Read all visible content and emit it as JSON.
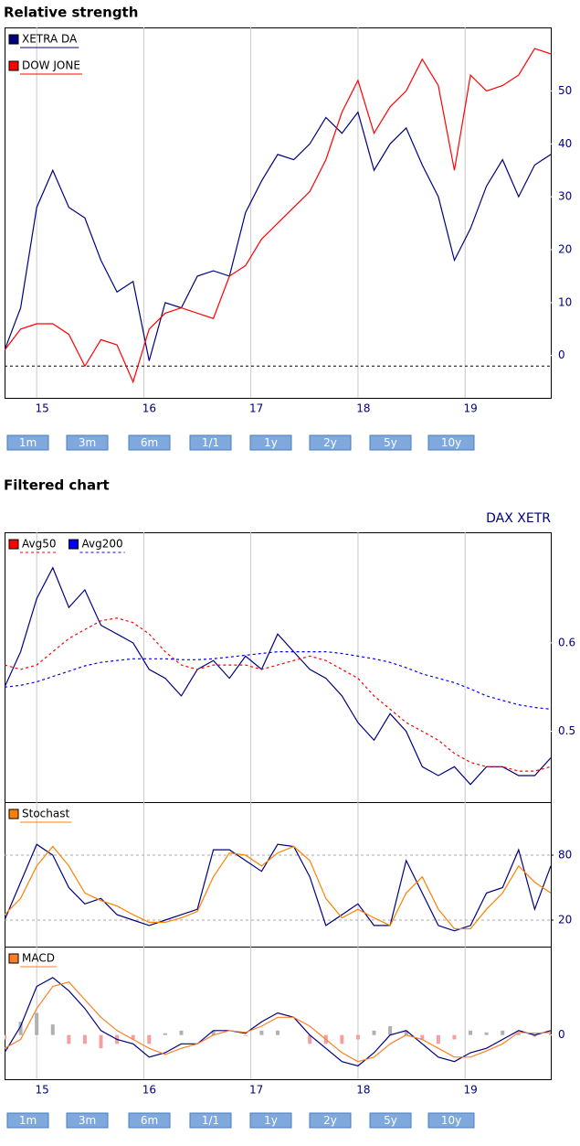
{
  "range_buttons": [
    "1m",
    "3m",
    "6m",
    "1/1",
    "1y",
    "2y",
    "5y",
    "10y"
  ],
  "chart_data": [
    {
      "type": "line",
      "title": "Relative strength",
      "x": [
        14.7,
        14.85,
        15.0,
        15.15,
        15.3,
        15.45,
        15.6,
        15.75,
        15.9,
        16.05,
        16.2,
        16.35,
        16.5,
        16.65,
        16.8,
        16.95,
        17.1,
        17.25,
        17.4,
        17.55,
        17.7,
        17.85,
        18.0,
        18.15,
        18.3,
        18.45,
        18.6,
        18.75,
        18.9,
        19.05,
        19.2,
        19.35,
        19.5,
        19.65,
        19.8
      ],
      "series": [
        {
          "name": "XETRA DA",
          "color": "#00007f",
          "values": [
            1,
            9,
            28,
            35,
            28,
            26,
            18,
            12,
            14,
            -1,
            10,
            9,
            15,
            16,
            15,
            27,
            33,
            38,
            37,
            40,
            45,
            42,
            46,
            35,
            40,
            43,
            36,
            30,
            18,
            24,
            32,
            37,
            30,
            36,
            38
          ]
        },
        {
          "name": "DOW JONE",
          "color": "#ff0000",
          "values": [
            1,
            5,
            6,
            6,
            4,
            -2,
            3,
            2,
            -5,
            5,
            8,
            9,
            8,
            7,
            15,
            17,
            22,
            25,
            28,
            31,
            37,
            46,
            52,
            42,
            47,
            50,
            56,
            51,
            35,
            53,
            50,
            51,
            53,
            58,
            57
          ]
        }
      ],
      "xlim": [
        14.7,
        19.8
      ],
      "xticks": [
        15,
        16,
        17,
        18,
        19
      ],
      "xtick_labels": true,
      "ylim": [
        -8,
        62
      ],
      "yticks": [
        0,
        10,
        20,
        30,
        40,
        50
      ],
      "hline": -2,
      "legend": "top-left",
      "legend_direction": "column"
    },
    {
      "type": "line",
      "title": "Filtered chart",
      "subtitle": "DAX XETR",
      "x": [
        14.7,
        14.85,
        15.0,
        15.15,
        15.3,
        15.45,
        15.6,
        15.75,
        15.9,
        16.05,
        16.2,
        16.35,
        16.5,
        16.65,
        16.8,
        16.95,
        17.1,
        17.25,
        17.4,
        17.55,
        17.7,
        17.85,
        18.0,
        18.15,
        18.3,
        18.45,
        18.6,
        18.75,
        18.9,
        19.05,
        19.2,
        19.35,
        19.5,
        19.65,
        19.8
      ],
      "series": [
        {
          "color": "#00007f",
          "values": [
            0.55,
            0.59,
            0.65,
            0.685,
            0.64,
            0.66,
            0.62,
            0.61,
            0.6,
            0.57,
            0.56,
            0.54,
            0.57,
            0.58,
            0.56,
            0.585,
            0.57,
            0.61,
            0.59,
            0.57,
            0.56,
            0.54,
            0.51,
            0.49,
            0.52,
            0.5,
            0.46,
            0.45,
            0.46,
            0.44,
            0.46,
            0.46,
            0.45,
            0.45,
            0.47
          ]
        },
        {
          "name": "Avg50",
          "color": "#ff0000",
          "dash": true,
          "values": [
            0.575,
            0.57,
            0.575,
            0.59,
            0.605,
            0.615,
            0.625,
            0.628,
            0.623,
            0.61,
            0.59,
            0.575,
            0.57,
            0.575,
            0.575,
            0.575,
            0.57,
            0.575,
            0.58,
            0.585,
            0.58,
            0.57,
            0.56,
            0.54,
            0.525,
            0.51,
            0.5,
            0.49,
            0.475,
            0.465,
            0.46,
            0.46,
            0.455,
            0.455,
            0.46
          ]
        },
        {
          "name": "Avg200",
          "color": "#0000ff",
          "dash": true,
          "values": [
            0.55,
            0.552,
            0.556,
            0.562,
            0.568,
            0.574,
            0.578,
            0.58,
            0.582,
            0.582,
            0.582,
            0.581,
            0.581,
            0.582,
            0.584,
            0.586,
            0.588,
            0.59,
            0.59,
            0.59,
            0.59,
            0.588,
            0.585,
            0.582,
            0.578,
            0.572,
            0.565,
            0.56,
            0.555,
            0.548,
            0.54,
            0.535,
            0.53,
            0.527,
            0.525
          ]
        }
      ],
      "xlim": [
        14.7,
        19.8
      ],
      "xticks": [
        15,
        16,
        17,
        18,
        19
      ],
      "xtick_labels": false,
      "ylim": [
        0.42,
        0.725
      ],
      "yticks": [
        0.5,
        0.6
      ],
      "legend": "top-left",
      "legend_direction": "row"
    },
    {
      "type": "line",
      "x": [
        14.7,
        14.85,
        15.0,
        15.15,
        15.3,
        15.45,
        15.6,
        15.75,
        15.9,
        16.05,
        16.2,
        16.35,
        16.5,
        16.65,
        16.8,
        16.95,
        17.1,
        17.25,
        17.4,
        17.55,
        17.7,
        17.85,
        18.0,
        18.15,
        18.3,
        18.45,
        18.6,
        18.75,
        18.9,
        19.05,
        19.2,
        19.35,
        19.5,
        19.65,
        19.8
      ],
      "series": [
        {
          "color": "#00007f",
          "values": [
            20,
            55,
            90,
            80,
            50,
            35,
            40,
            25,
            20,
            15,
            20,
            25,
            30,
            85,
            85,
            75,
            65,
            90,
            88,
            60,
            15,
            25,
            35,
            15,
            15,
            75,
            45,
            15,
            10,
            15,
            45,
            50,
            85,
            30,
            70
          ]
        },
        {
          "name": "Stochast",
          "color": "#ff8000",
          "values": [
            25,
            40,
            70,
            88,
            70,
            45,
            38,
            33,
            25,
            18,
            18,
            22,
            28,
            60,
            82,
            80,
            70,
            82,
            88,
            75,
            40,
            22,
            30,
            22,
            15,
            45,
            60,
            30,
            12,
            12,
            30,
            45,
            70,
            55,
            45
          ]
        }
      ],
      "xlim": [
        14.7,
        19.8
      ],
      "xticks": [
        15,
        16,
        17,
        18,
        19
      ],
      "xtick_labels": false,
      "ylim": [
        -4.5,
        129
      ],
      "yticks": [
        20,
        80
      ],
      "grid": true,
      "legend": "top-left",
      "legend_direction": "row"
    },
    {
      "type": "line",
      "x": [
        14.7,
        14.85,
        15.0,
        15.15,
        15.3,
        15.45,
        15.6,
        15.75,
        15.9,
        16.05,
        16.2,
        16.35,
        16.5,
        16.65,
        16.8,
        16.95,
        17.1,
        17.25,
        17.4,
        17.55,
        17.7,
        17.85,
        18.0,
        18.15,
        18.3,
        18.45,
        18.6,
        18.75,
        18.9,
        19.05,
        19.2,
        19.35,
        19.5,
        19.65,
        19.8
      ],
      "histogram": {
        "positive_color": "#b0b0b0",
        "negative_color": "#f4a0a0",
        "values": [
          -0.05,
          0.15,
          0.25,
          0.12,
          -0.1,
          -0.1,
          -0.15,
          -0.1,
          -0.05,
          -0.1,
          0.02,
          0.05,
          0,
          0.05,
          0,
          -0.01,
          0.05,
          0.05,
          0,
          -0.1,
          -0.1,
          -0.1,
          -0.05,
          0.05,
          0.1,
          0.05,
          -0.05,
          -0.1,
          -0.05,
          0.05,
          0.03,
          0.05,
          0.02,
          -0.02,
          0.02
        ]
      },
      "series": [
        {
          "color": "#00007f",
          "values": [
            -0.2,
            0.1,
            0.55,
            0.65,
            0.5,
            0.3,
            0.05,
            -0.05,
            -0.1,
            -0.25,
            -0.2,
            -0.1,
            -0.1,
            0.05,
            0.05,
            0.02,
            0.15,
            0.25,
            0.2,
            0,
            -0.15,
            -0.3,
            -0.35,
            -0.2,
            0,
            0.05,
            -0.1,
            -0.25,
            -0.3,
            -0.2,
            -0.15,
            -0.05,
            0.05,
            0,
            0.05
          ]
        },
        {
          "name": "MACD",
          "color": "#ff7f27",
          "values": [
            -0.15,
            -0.05,
            0.3,
            0.55,
            0.6,
            0.4,
            0.2,
            0.05,
            -0.05,
            -0.15,
            -0.22,
            -0.15,
            -0.1,
            0,
            0.05,
            0.03,
            0.1,
            0.2,
            0.2,
            0.1,
            -0.05,
            -0.2,
            -0.3,
            -0.25,
            -0.1,
            0,
            -0.05,
            -0.15,
            -0.25,
            -0.25,
            -0.18,
            -0.1,
            0.03,
            0.02,
            0.03
          ]
        }
      ],
      "xlim": [
        14.7,
        19.8
      ],
      "xticks": [
        15,
        16,
        17,
        18,
        19
      ],
      "xtick_labels": true,
      "ylim": [
        -0.5,
        1
      ],
      "yticks": [
        0
      ],
      "legend": "top-left",
      "legend_direction": "row"
    }
  ]
}
